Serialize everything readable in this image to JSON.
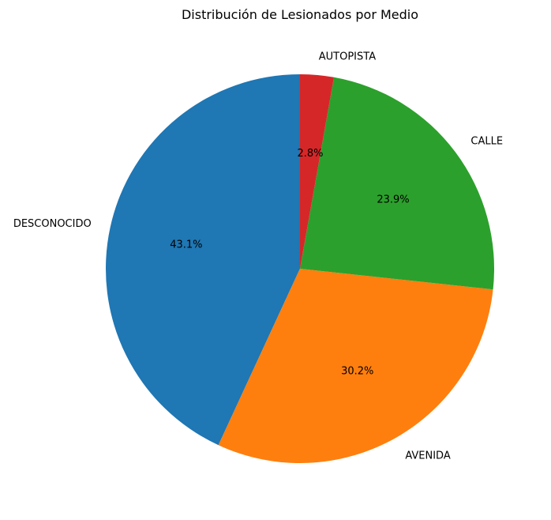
{
  "chart_data": {
    "type": "pie",
    "title": "Distribución de Lesionados por Medio",
    "categories": [
      "DESCONOCIDO",
      "AVENIDA",
      "CALLE",
      "AUTOPISTA"
    ],
    "values": [
      43.1,
      30.2,
      23.9,
      2.8
    ],
    "labels": [
      "43.1%",
      "30.2%",
      "23.9%",
      "2.8%"
    ],
    "colors": [
      "#1f77b4",
      "#ff7f0e",
      "#2ca02c",
      "#d62728"
    ],
    "legend": "none"
  }
}
